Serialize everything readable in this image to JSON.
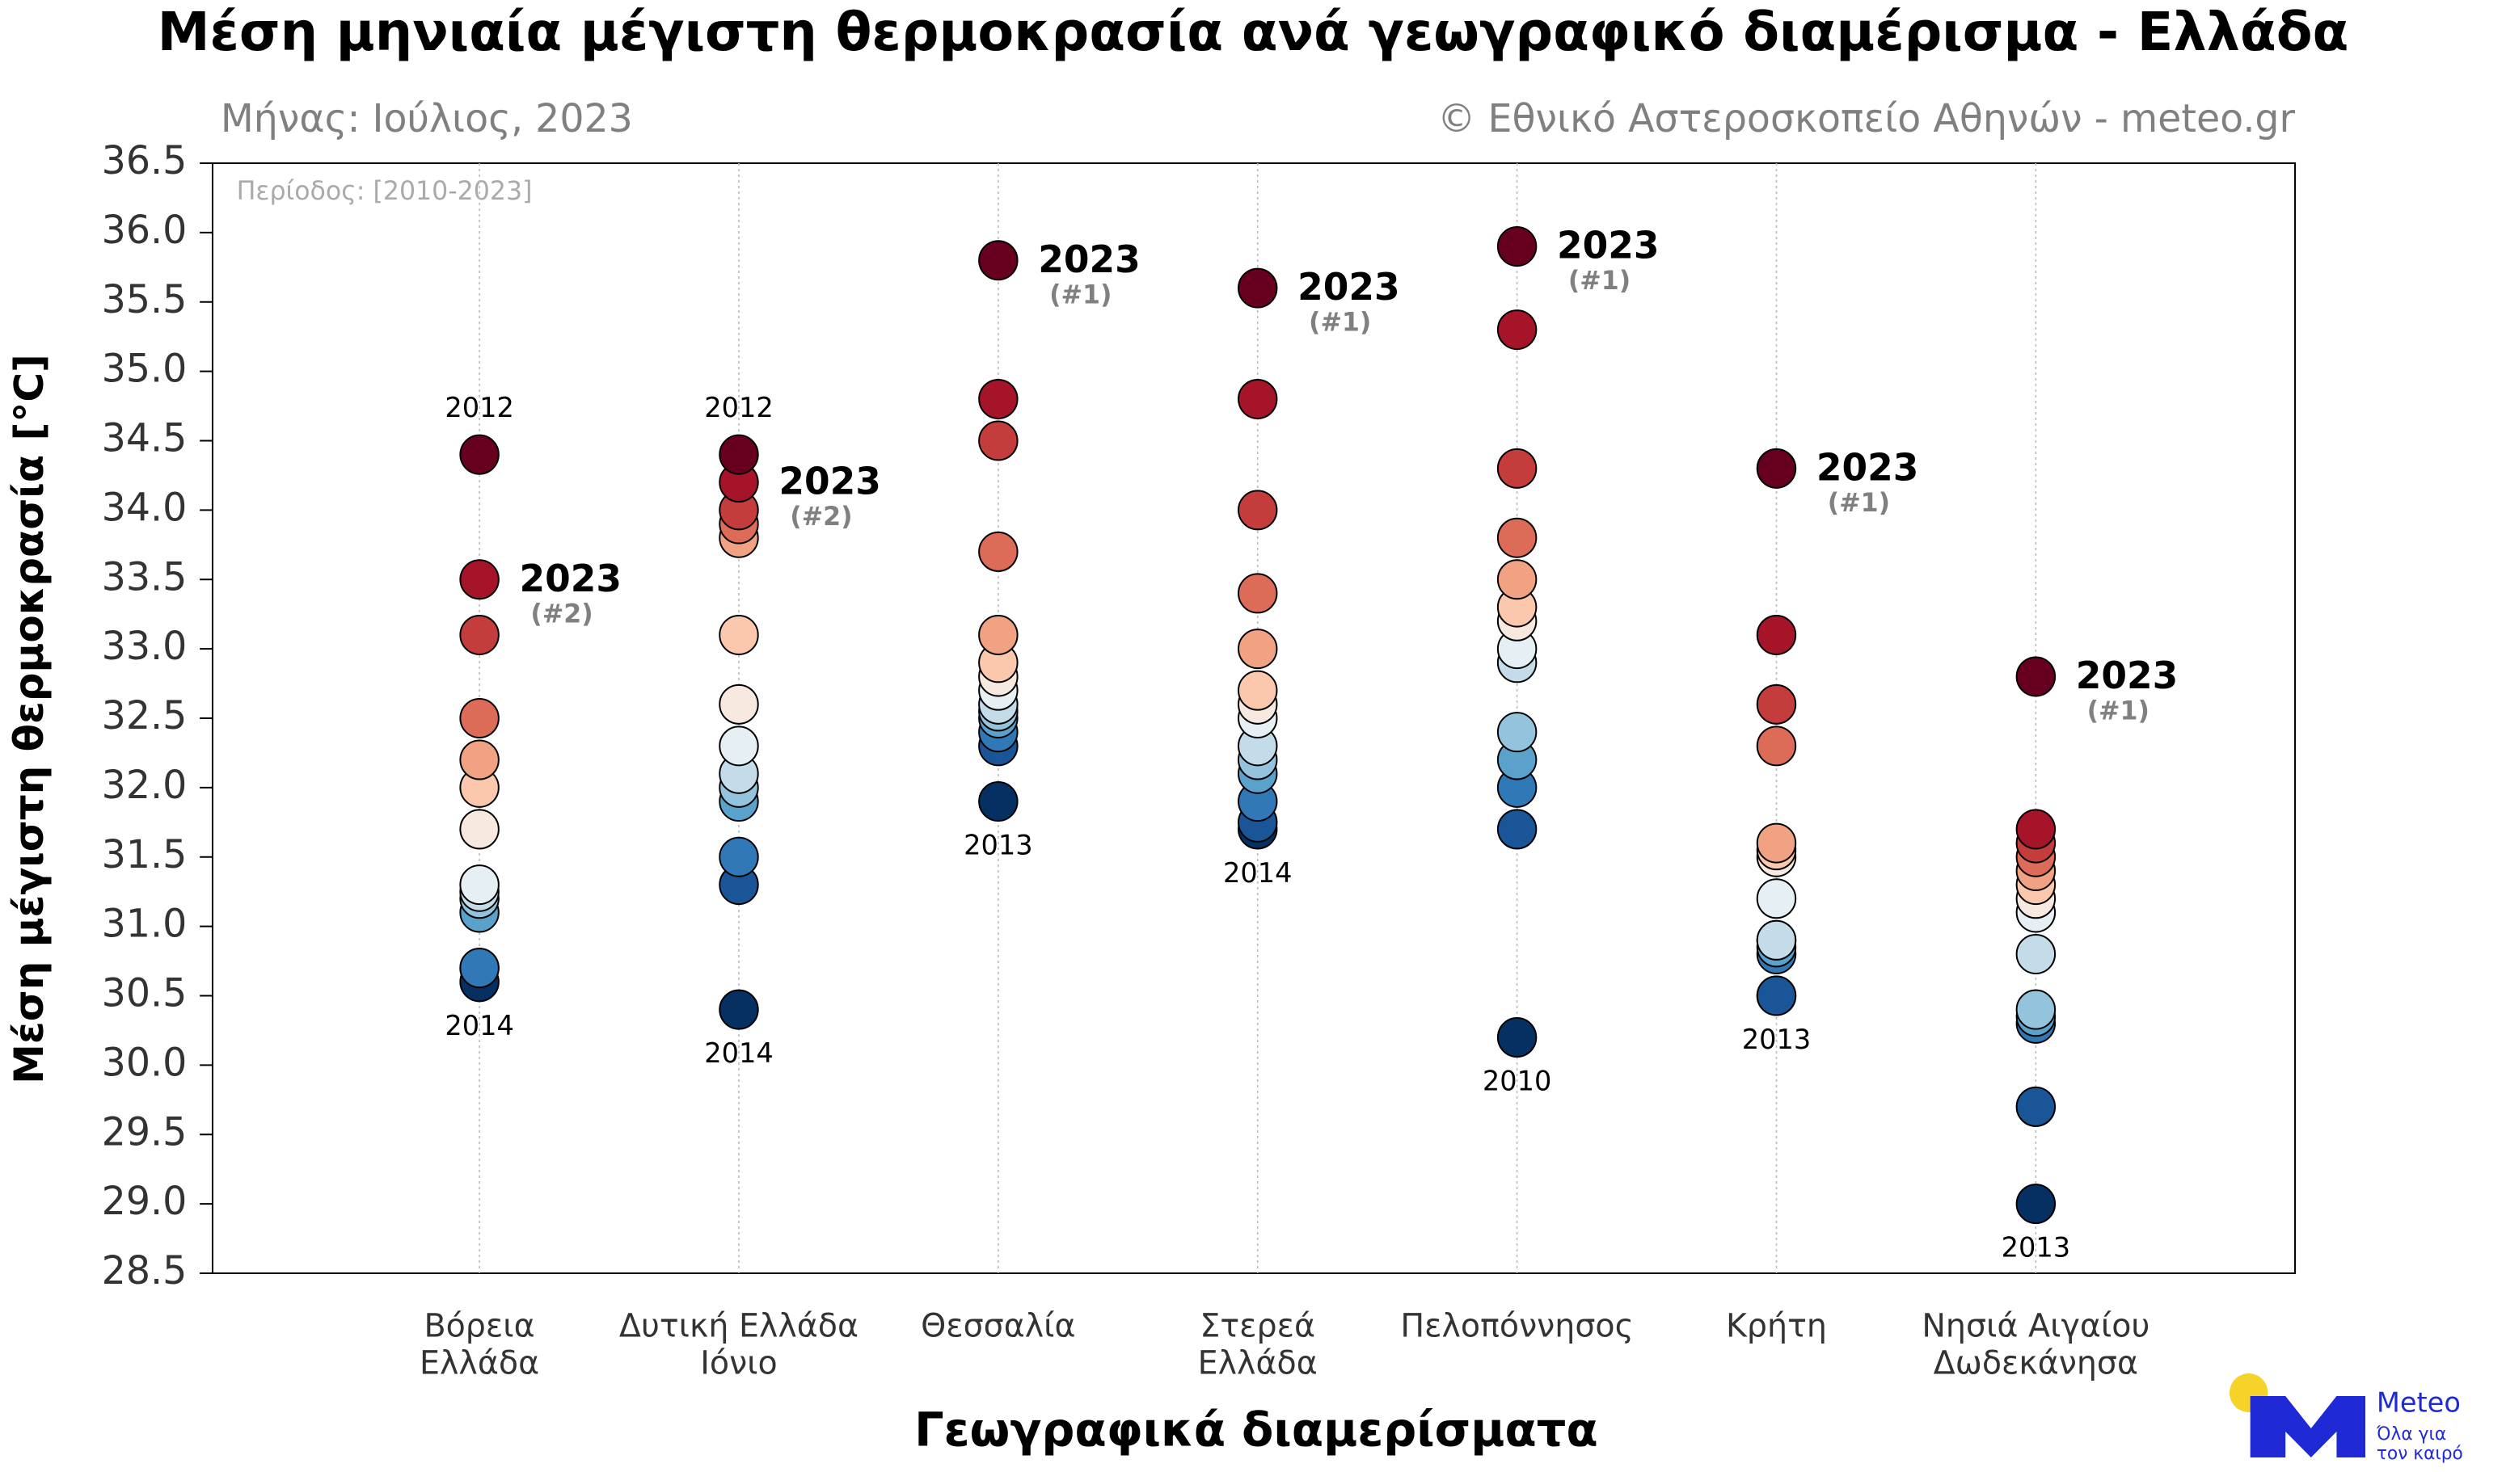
{
  "chart_data": {
    "type": "strip",
    "title": "Μέση μηνιαία μέγιστη θερμοκρασία ανά γεωγραφικό διαμέρισμα - Ελλάδα",
    "subtitle": "Μήνας: Ιούλιος, 2023",
    "credit": "© Εθνικό Αστεροσκοπείο Αθηνών - meteo.gr",
    "period_note": "Περίοδος: [2010-2023]",
    "y_label": "Μέση μέγιστη θερμοκρασία [°C]",
    "x_label": "Γεωγραφικά διαμερίσματα",
    "categories": [
      [
        "Βόρεια",
        "Ελλάδα"
      ],
      [
        "Δυτική Ελλάδα",
        "Ιόνιο"
      ],
      [
        "Θεσσαλία"
      ],
      [
        "Στερεά",
        "Ελλάδα"
      ],
      [
        "Πελοπόννησος"
      ],
      [
        "Κρήτη"
      ],
      [
        "Νησιά Αιγαίου",
        "Δωδεκάνησα"
      ]
    ],
    "current": {
      "label": "2023",
      "values": [
        33.5,
        34.2,
        35.8,
        35.6,
        35.9,
        34.3,
        32.8
      ],
      "rank_labels": [
        "(#2)",
        "(#2)",
        "(#1)",
        "(#1)",
        "(#1)",
        "(#1)",
        "(#1)"
      ]
    },
    "other_values": [
      [
        34.4,
        33.1,
        32.5,
        32.2,
        32.0,
        31.7,
        31.3,
        31.25,
        31.2,
        31.1,
        30.7,
        30.7,
        30.6
      ],
      [
        34.4,
        34.0,
        33.9,
        33.8,
        33.1,
        32.6,
        32.3,
        32.1,
        32.0,
        31.9,
        31.5,
        31.3,
        30.4
      ],
      [
        34.8,
        34.5,
        33.7,
        33.1,
        32.9,
        32.8,
        32.7,
        32.6,
        32.55,
        32.5,
        32.4,
        32.3,
        31.9
      ],
      [
        34.8,
        34.0,
        33.4,
        33.0,
        32.7,
        32.6,
        32.5,
        32.3,
        32.2,
        32.1,
        31.9,
        31.75,
        31.7
      ],
      [
        35.3,
        34.3,
        33.8,
        33.5,
        33.3,
        33.2,
        33.0,
        32.9,
        32.4,
        32.2,
        32.0,
        31.7,
        30.2
      ],
      [
        33.1,
        32.6,
        32.3,
        31.6,
        31.55,
        31.5,
        31.2,
        30.9,
        30.9,
        30.85,
        30.8,
        30.5,
        30.5
      ],
      [
        31.7,
        31.6,
        31.5,
        31.4,
        31.3,
        31.2,
        31.1,
        30.8,
        30.4,
        30.35,
        30.3,
        29.7,
        29.0
      ]
    ],
    "max_labels": [
      "2012",
      "2012",
      null,
      null,
      null,
      null,
      null
    ],
    "min_labels": [
      "2014",
      "2014",
      "2013",
      "2014",
      "2010",
      "2013",
      "2013"
    ],
    "palette": [
      "#67001f",
      "#a51429",
      "#c43c3c",
      "#dc6b58",
      "#f1a283",
      "#fbc8ae",
      "#f7e9df",
      "#e6eff4",
      "#c4dcea",
      "#93c3dd",
      "#5aa1cc",
      "#3179b6",
      "#1a5597",
      "#053061"
    ],
    "ylim": [
      28.5,
      36.5
    ],
    "yticks": [
      28.5,
      {
        "value": 29,
        "label": "29.0"
      },
      29.5,
      {
        "value": 30,
        "label": "30.0"
      },
      30.5,
      {
        "value": 31,
        "label": "31.0"
      },
      31.5,
      {
        "value": 32,
        "label": "32.0"
      },
      32.5,
      {
        "value": 33,
        "label": "33.0"
      },
      33.5,
      {
        "value": 34,
        "label": "34.0"
      },
      34.5,
      {
        "value": 35,
        "label": "35.0"
      },
      35.5,
      {
        "value": 36,
        "label": "36.0"
      },
      36.5
    ],
    "grid": true,
    "logo": {
      "name": "Meteo",
      "tagline": [
        "Όλα για",
        "τον καιρό"
      ]
    }
  }
}
